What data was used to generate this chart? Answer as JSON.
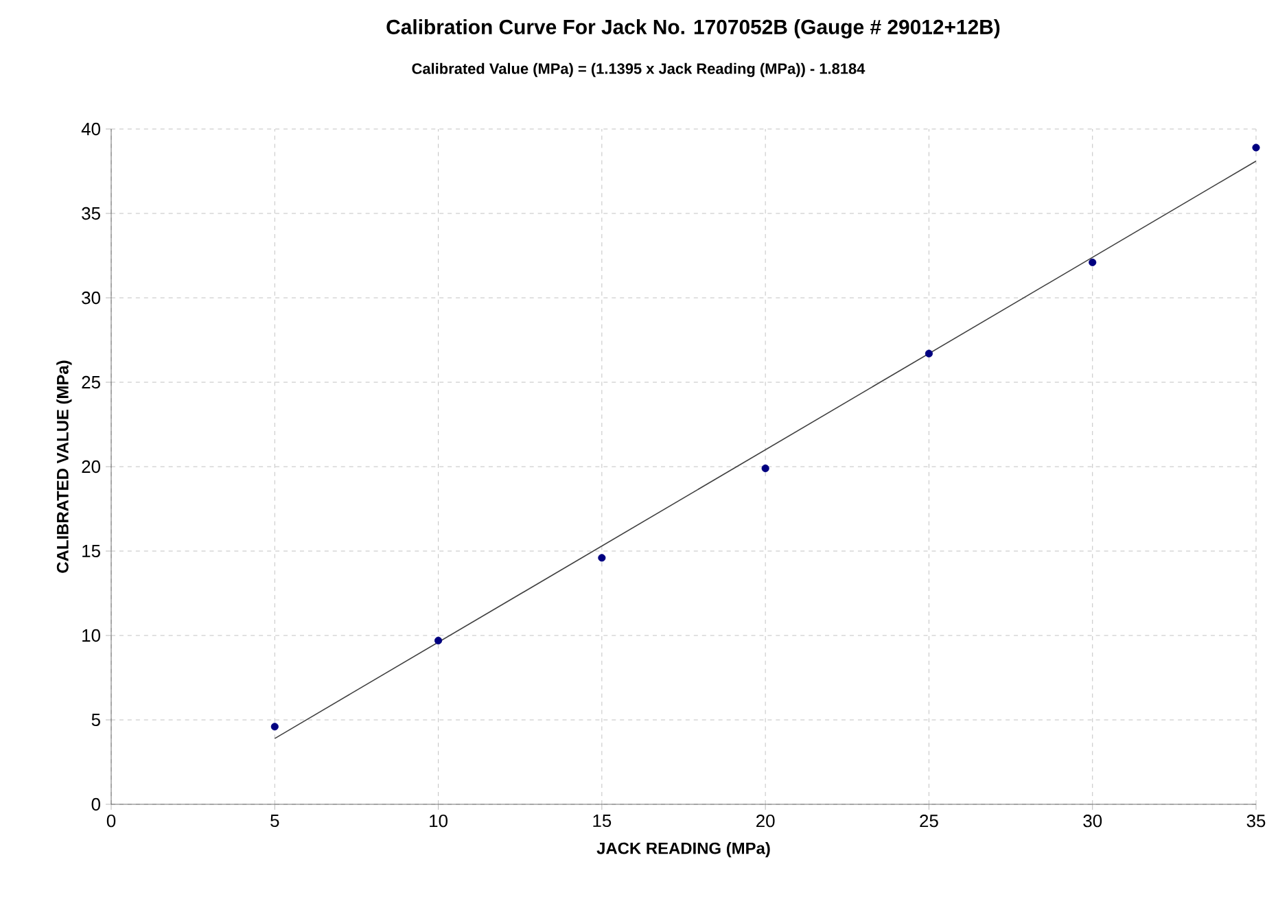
{
  "chart_data": {
    "type": "scatter",
    "title": "Calibration Curve For Jack No. 1707052B (Gauge # 29012+12B)",
    "subtitle": "Calibrated Value (MPa)  = (1.1395  x Jack Reading (MPa)) - 1.8184",
    "xlabel": "JACK READING  (MPa)",
    "ylabel": "CALIBRATED  VALUE  (MPa)",
    "xlim": [
      0,
      35
    ],
    "ylim": [
      0,
      40
    ],
    "xticks": [
      0,
      5,
      10,
      15,
      20,
      25,
      30,
      35
    ],
    "yticks": [
      0,
      5,
      10,
      15,
      20,
      25,
      30,
      35,
      40
    ],
    "grid": true,
    "marker": "circle",
    "series": [
      {
        "color": "#000080",
        "x": [
          5,
          10,
          15,
          20,
          25,
          30,
          35
        ],
        "values": [
          4.6,
          9.7,
          14.6,
          19.9,
          26.7,
          32.1,
          38.9
        ]
      },
      {
        "type": "line",
        "color": "#404040",
        "marker": "none",
        "line_style": "solid",
        "x": [
          5,
          35
        ],
        "values": [
          3.9,
          38.1
        ]
      }
    ]
  }
}
